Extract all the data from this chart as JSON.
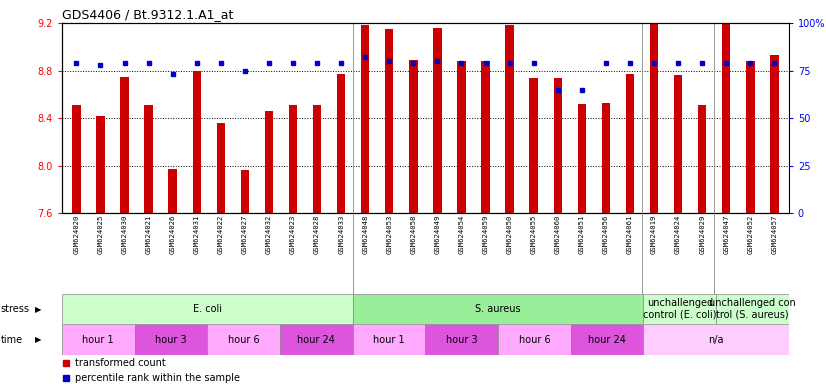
{
  "title": "GDS4406 / Bt.9312.1.A1_at",
  "samples": [
    "GSM624020",
    "GSM624025",
    "GSM624030",
    "GSM624021",
    "GSM624026",
    "GSM624031",
    "GSM624022",
    "GSM624027",
    "GSM624032",
    "GSM624023",
    "GSM624028",
    "GSM624033",
    "GSM624048",
    "GSM624053",
    "GSM624058",
    "GSM624049",
    "GSM624054",
    "GSM624059",
    "GSM624050",
    "GSM624055",
    "GSM624060",
    "GSM624051",
    "GSM624056",
    "GSM624061",
    "GSM624019",
    "GSM624024",
    "GSM624029",
    "GSM624047",
    "GSM624052",
    "GSM624057"
  ],
  "bar_values": [
    8.51,
    8.42,
    8.75,
    8.51,
    7.97,
    8.8,
    8.36,
    7.96,
    8.46,
    8.51,
    8.51,
    8.77,
    9.18,
    9.15,
    8.89,
    9.16,
    8.88,
    8.88,
    9.18,
    8.74,
    8.74,
    8.52,
    8.53,
    8.77,
    9.19,
    8.76,
    8.51,
    9.2,
    8.88,
    8.93
  ],
  "percentile_values": [
    79,
    78,
    79,
    79,
    73,
    79,
    79,
    75,
    79,
    79,
    79,
    79,
    82,
    80,
    79,
    80,
    79,
    79,
    79,
    79,
    65,
    65,
    79,
    79,
    79,
    79,
    79,
    79,
    79,
    79
  ],
  "ylim_left": [
    7.6,
    9.2
  ],
  "ylim_right": [
    0,
    100
  ],
  "yticks_left": [
    7.6,
    8.0,
    8.4,
    8.8,
    9.2
  ],
  "yticks_right": [
    0,
    25,
    50,
    75,
    100
  ],
  "bar_color": "#cc0000",
  "dot_color": "#0000cc",
  "background_color": "#ffffff",
  "xlabel_bg": "#d8d8d8",
  "stress_groups": [
    {
      "label": "E. coli",
      "start": 0,
      "end": 12,
      "color": "#ccffcc"
    },
    {
      "label": "S. aureus",
      "start": 12,
      "end": 24,
      "color": "#99ee99"
    },
    {
      "label": "unchallenged\ncontrol (E. coli)",
      "start": 24,
      "end": 27,
      "color": "#ccffcc"
    },
    {
      "label": "unchallenged con\ntrol (S. aureus)",
      "start": 27,
      "end": 30,
      "color": "#ccffcc"
    }
  ],
  "time_groups": [
    {
      "label": "hour 1",
      "start": 0,
      "end": 3,
      "color": "#ffaaff"
    },
    {
      "label": "hour 3",
      "start": 3,
      "end": 6,
      "color": "#dd55dd"
    },
    {
      "label": "hour 6",
      "start": 6,
      "end": 9,
      "color": "#ffaaff"
    },
    {
      "label": "hour 24",
      "start": 9,
      "end": 12,
      "color": "#dd55dd"
    },
    {
      "label": "hour 1",
      "start": 12,
      "end": 15,
      "color": "#ffaaff"
    },
    {
      "label": "hour 3",
      "start": 15,
      "end": 18,
      "color": "#dd55dd"
    },
    {
      "label": "hour 6",
      "start": 18,
      "end": 21,
      "color": "#ffaaff"
    },
    {
      "label": "hour 24",
      "start": 21,
      "end": 24,
      "color": "#dd55dd"
    },
    {
      "label": "n/a",
      "start": 24,
      "end": 30,
      "color": "#ffccff"
    }
  ],
  "legend_items": [
    {
      "label": "transformed count",
      "color": "#cc0000"
    },
    {
      "label": "percentile rank within the sample",
      "color": "#0000cc"
    }
  ],
  "group_boundaries": [
    12,
    24,
    27
  ]
}
